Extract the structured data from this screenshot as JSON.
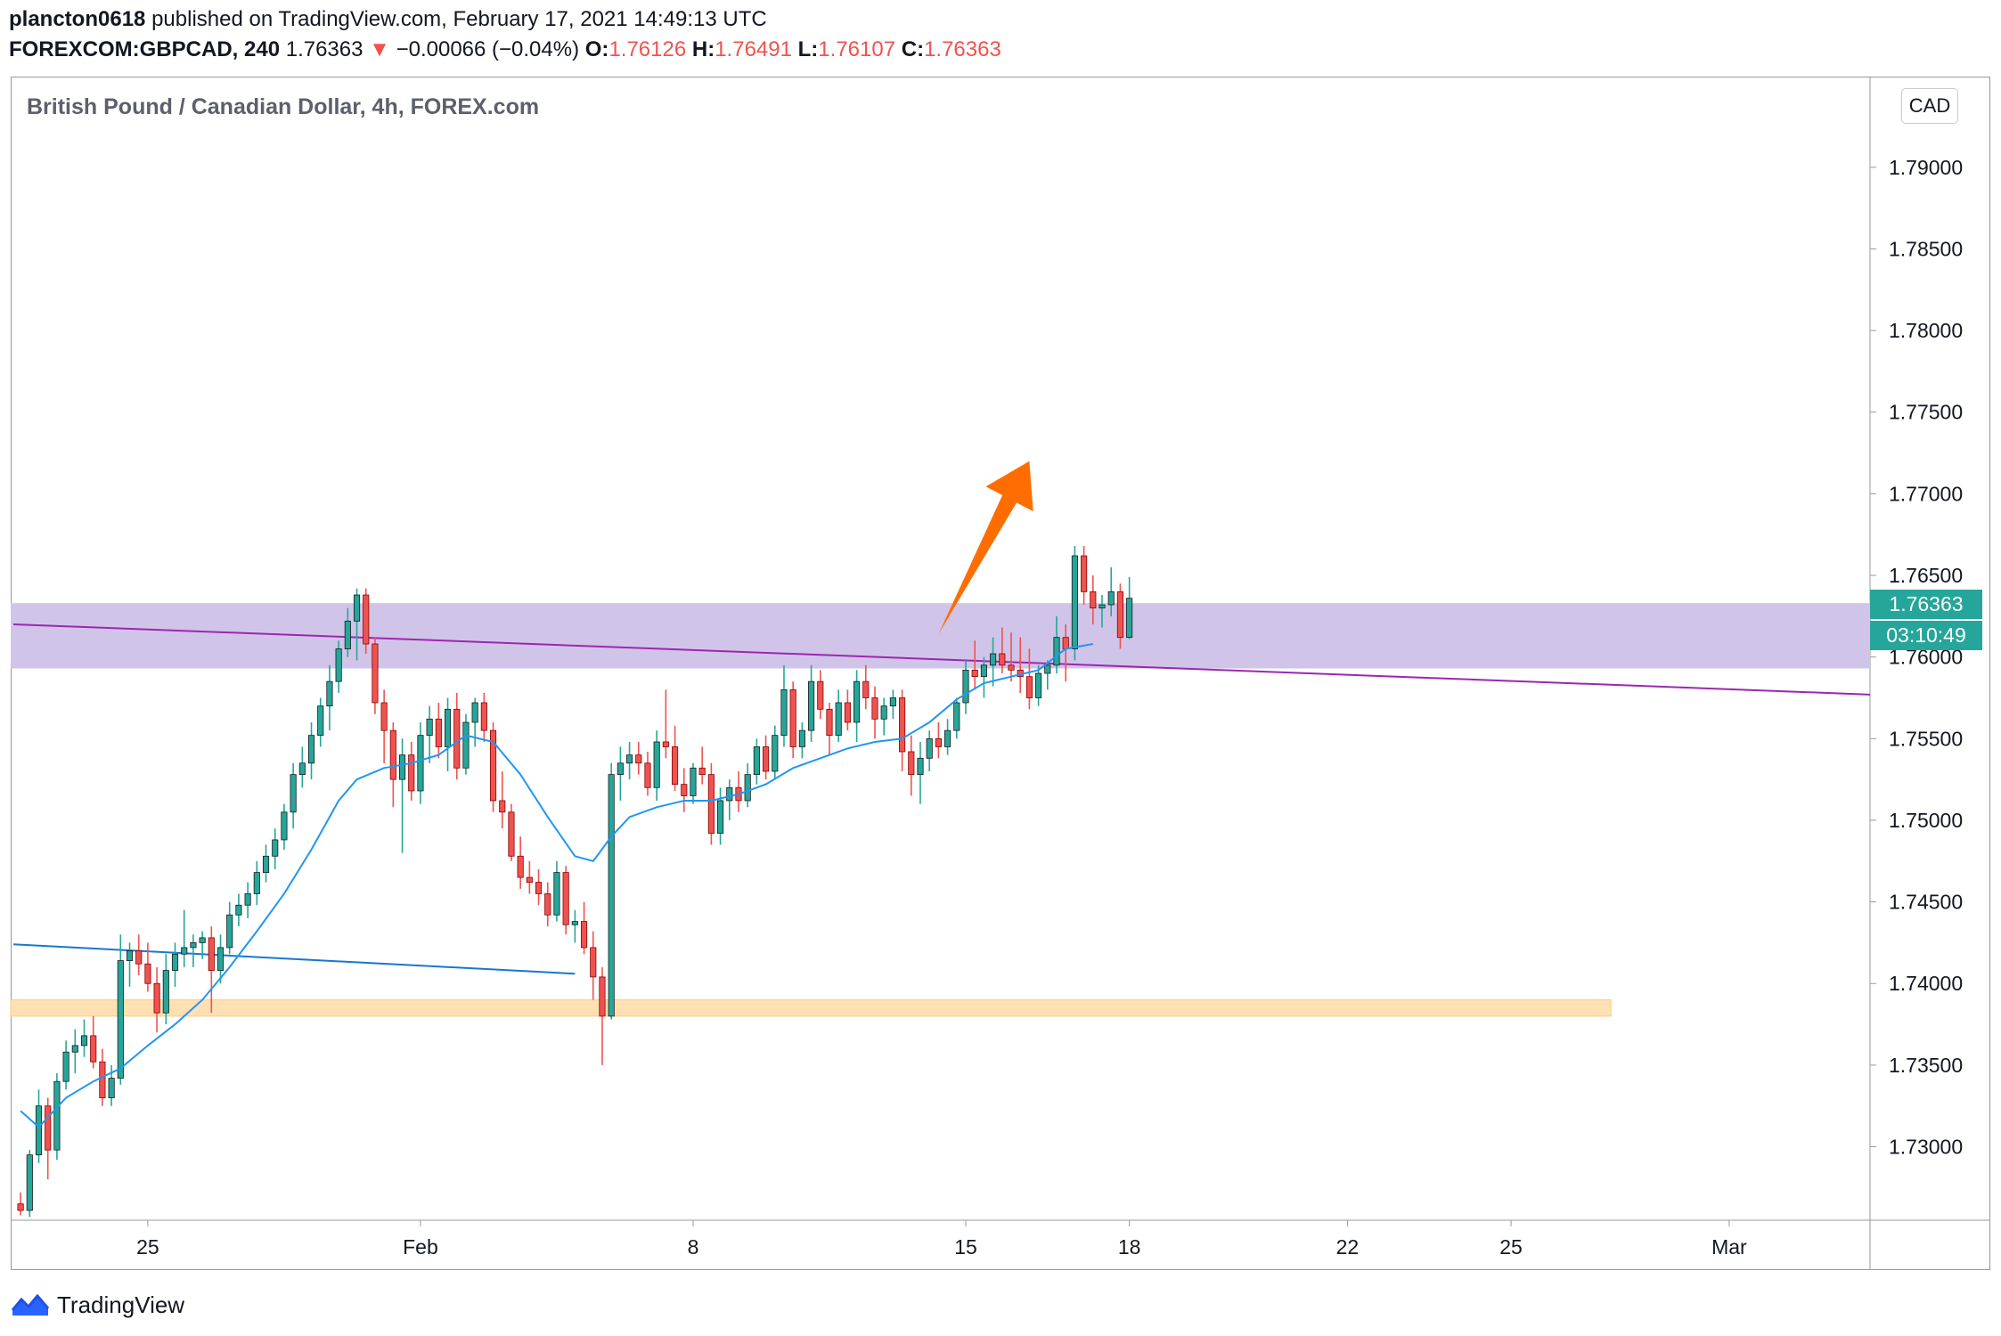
{
  "header": {
    "author": "plancton0618",
    "published": "published on TradingView.com, February 17, 2021 14:49:13 UTC",
    "symbol": "FOREXCOM:GBPCAD, 240",
    "last": "1.76363",
    "change": "−0.00066 (−0.04%)",
    "o_label": "O:",
    "o_value": "1.76126",
    "h_label": "H:",
    "h_value": "1.76491",
    "l_label": "L:",
    "l_value": "1.76107",
    "c_label": "C:",
    "c_value": "1.76363"
  },
  "chart_title": "British Pound / Canadian Dollar, 4h, FOREX.com",
  "currency_badge": "CAD",
  "price_tag": "1.76363",
  "timer_tag": "03:10:49",
  "brand": "TradingView",
  "colors": {
    "up": "#26a69a",
    "down": "#ef5350",
    "ema": "#2196f3",
    "zone": "#d1c4e9",
    "support": "#ffe0b2",
    "trend": "#9c27b0",
    "arrow": "#ff6d00"
  },
  "chart_data": {
    "type": "candlestick",
    "title": "British Pound / Canadian Dollar, 4h, FOREX.com",
    "y_ticks": [
      "1.79000",
      "1.78500",
      "1.78000",
      "1.77500",
      "1.77000",
      "1.76500",
      "1.76000",
      "1.75500",
      "1.75000",
      "1.74500",
      "1.74000",
      "1.73500",
      "1.73000"
    ],
    "x_ticks": [
      {
        "label": "25",
        "i": 14
      },
      {
        "label": "Feb",
        "i": 44
      },
      {
        "label": "8",
        "i": 74
      },
      {
        "label": "15",
        "i": 104
      },
      {
        "label": "18",
        "i": 122
      },
      {
        "label": "22",
        "i": 146
      },
      {
        "label": "25",
        "i": 164
      },
      {
        "label": "Mar",
        "i": 188
      }
    ],
    "ylim": [
      1.7255,
      1.7955
    ],
    "bar_count": 204,
    "ohlc": [
      [
        1.7265,
        1.7272,
        1.7258,
        1.7261
      ],
      [
        1.7261,
        1.7298,
        1.7257,
        1.7295
      ],
      [
        1.7295,
        1.7335,
        1.729,
        1.7325
      ],
      [
        1.7325,
        1.733,
        1.728,
        1.7298
      ],
      [
        1.7298,
        1.7345,
        1.7292,
        1.734
      ],
      [
        1.734,
        1.7365,
        1.7335,
        1.7358
      ],
      [
        1.7358,
        1.7372,
        1.7345,
        1.7362
      ],
      [
        1.7362,
        1.7378,
        1.7355,
        1.7368
      ],
      [
        1.7368,
        1.738,
        1.7348,
        1.7352
      ],
      [
        1.7352,
        1.736,
        1.7325,
        1.733
      ],
      [
        1.733,
        1.735,
        1.7325,
        1.7342
      ],
      [
        1.7342,
        1.743,
        1.7338,
        1.7414
      ],
      [
        1.7414,
        1.7425,
        1.7398,
        1.742
      ],
      [
        1.742,
        1.743,
        1.7405,
        1.7412
      ],
      [
        1.7412,
        1.7425,
        1.7395,
        1.74
      ],
      [
        1.74,
        1.741,
        1.737,
        1.7382
      ],
      [
        1.7382,
        1.7418,
        1.7375,
        1.7408
      ],
      [
        1.7408,
        1.7425,
        1.7398,
        1.7418
      ],
      [
        1.7418,
        1.7445,
        1.741,
        1.7422
      ],
      [
        1.7422,
        1.743,
        1.741,
        1.7425
      ],
      [
        1.7425,
        1.7432,
        1.7415,
        1.7428
      ],
      [
        1.7428,
        1.7435,
        1.7382,
        1.7408
      ],
      [
        1.7408,
        1.743,
        1.74,
        1.7422
      ],
      [
        1.7422,
        1.745,
        1.7418,
        1.7442
      ],
      [
        1.7442,
        1.7455,
        1.7435,
        1.7448
      ],
      [
        1.7448,
        1.7462,
        1.744,
        1.7455
      ],
      [
        1.7455,
        1.7475,
        1.7448,
        1.7468
      ],
      [
        1.7468,
        1.7485,
        1.7462,
        1.7478
      ],
      [
        1.7478,
        1.7495,
        1.747,
        1.7488
      ],
      [
        1.7488,
        1.751,
        1.7482,
        1.7505
      ],
      [
        1.7505,
        1.7535,
        1.7495,
        1.7528
      ],
      [
        1.7528,
        1.7545,
        1.752,
        1.7535
      ],
      [
        1.7535,
        1.756,
        1.7525,
        1.7552
      ],
      [
        1.7552,
        1.7575,
        1.7545,
        1.757
      ],
      [
        1.757,
        1.7595,
        1.7555,
        1.7585
      ],
      [
        1.7585,
        1.761,
        1.7578,
        1.7605
      ],
      [
        1.7605,
        1.763,
        1.76,
        1.7622
      ],
      [
        1.7622,
        1.7642,
        1.7598,
        1.7638
      ],
      [
        1.7638,
        1.7642,
        1.7602,
        1.7608
      ],
      [
        1.7608,
        1.7612,
        1.7565,
        1.7572
      ],
      [
        1.7572,
        1.758,
        1.7535,
        1.7555
      ],
      [
        1.7555,
        1.756,
        1.7508,
        1.7525
      ],
      [
        1.7525,
        1.755,
        1.748,
        1.754
      ],
      [
        1.754,
        1.7548,
        1.7512,
        1.7518
      ],
      [
        1.7518,
        1.756,
        1.751,
        1.7552
      ],
      [
        1.7552,
        1.757,
        1.7535,
        1.7562
      ],
      [
        1.7562,
        1.7572,
        1.7538,
        1.7545
      ],
      [
        1.7545,
        1.7575,
        1.753,
        1.7568
      ],
      [
        1.7568,
        1.7578,
        1.7525,
        1.7532
      ],
      [
        1.7532,
        1.7565,
        1.7528,
        1.756
      ],
      [
        1.756,
        1.7575,
        1.7545,
        1.7572
      ],
      [
        1.7572,
        1.7578,
        1.7548,
        1.7555
      ],
      [
        1.7555,
        1.756,
        1.7505,
        1.7512
      ],
      [
        1.7512,
        1.753,
        1.7495,
        1.7505
      ],
      [
        1.7505,
        1.751,
        1.7475,
        1.7478
      ],
      [
        1.7478,
        1.749,
        1.7458,
        1.7465
      ],
      [
        1.7465,
        1.7475,
        1.7455,
        1.7462
      ],
      [
        1.7462,
        1.747,
        1.7448,
        1.7455
      ],
      [
        1.7455,
        1.7462,
        1.7435,
        1.7442
      ],
      [
        1.7442,
        1.7475,
        1.7438,
        1.7468
      ],
      [
        1.7468,
        1.7472,
        1.743,
        1.7436
      ],
      [
        1.7436,
        1.7445,
        1.7425,
        1.7438
      ],
      [
        1.7438,
        1.745,
        1.7418,
        1.7422
      ],
      [
        1.7422,
        1.7432,
        1.739,
        1.7404
      ],
      [
        1.7404,
        1.741,
        1.735,
        1.738
      ],
      [
        1.738,
        1.7535,
        1.7378,
        1.7528
      ],
      [
        1.7528,
        1.7545,
        1.7512,
        1.7535
      ],
      [
        1.7535,
        1.7548,
        1.7525,
        1.754
      ],
      [
        1.754,
        1.7548,
        1.7528,
        1.7535
      ],
      [
        1.7535,
        1.7542,
        1.7515,
        1.752
      ],
      [
        1.752,
        1.7555,
        1.7512,
        1.7548
      ],
      [
        1.7548,
        1.758,
        1.7538,
        1.7545
      ],
      [
        1.7545,
        1.7558,
        1.7518,
        1.7522
      ],
      [
        1.7522,
        1.7532,
        1.7505,
        1.7515
      ],
      [
        1.7515,
        1.7535,
        1.751,
        1.7532
      ],
      [
        1.7532,
        1.7545,
        1.7522,
        1.7528
      ],
      [
        1.7528,
        1.7535,
        1.7485,
        1.7492
      ],
      [
        1.7492,
        1.752,
        1.7485,
        1.7512
      ],
      [
        1.7512,
        1.7525,
        1.75,
        1.752
      ],
      [
        1.752,
        1.753,
        1.7505,
        1.7512
      ],
      [
        1.7512,
        1.7535,
        1.7508,
        1.7528
      ],
      [
        1.7528,
        1.755,
        1.7522,
        1.7545
      ],
      [
        1.7545,
        1.7552,
        1.7525,
        1.753
      ],
      [
        1.753,
        1.7558,
        1.7525,
        1.7552
      ],
      [
        1.7552,
        1.7595,
        1.7545,
        1.758
      ],
      [
        1.758,
        1.7585,
        1.7538,
        1.7545
      ],
      [
        1.7545,
        1.756,
        1.7538,
        1.7555
      ],
      [
        1.7555,
        1.7595,
        1.7548,
        1.7585
      ],
      [
        1.7585,
        1.7592,
        1.7562,
        1.7568
      ],
      [
        1.7568,
        1.7572,
        1.754,
        1.7552
      ],
      [
        1.7552,
        1.758,
        1.7548,
        1.7572
      ],
      [
        1.7572,
        1.758,
        1.7555,
        1.756
      ],
      [
        1.756,
        1.7592,
        1.7548,
        1.7585
      ],
      [
        1.7585,
        1.7595,
        1.7568,
        1.7575
      ],
      [
        1.7575,
        1.7582,
        1.755,
        1.7562
      ],
      [
        1.7562,
        1.7575,
        1.7552,
        1.757
      ],
      [
        1.757,
        1.758,
        1.7562,
        1.7575
      ],
      [
        1.7575,
        1.758,
        1.753,
        1.7542
      ],
      [
        1.7542,
        1.7552,
        1.7515,
        1.7528
      ],
      [
        1.7528,
        1.7548,
        1.751,
        1.7538
      ],
      [
        1.7538,
        1.7555,
        1.753,
        1.755
      ],
      [
        1.755,
        1.756,
        1.7538,
        1.7545
      ],
      [
        1.7545,
        1.7562,
        1.754,
        1.7555
      ],
      [
        1.7555,
        1.7575,
        1.755,
        1.7572
      ],
      [
        1.7572,
        1.7598,
        1.7565,
        1.7592
      ],
      [
        1.7592,
        1.761,
        1.758,
        1.7588
      ],
      [
        1.7588,
        1.76,
        1.7575,
        1.7595
      ],
      [
        1.7595,
        1.7612,
        1.7582,
        1.7602
      ],
      [
        1.7602,
        1.7618,
        1.759,
        1.7595
      ],
      [
        1.7595,
        1.7615,
        1.7585,
        1.7592
      ],
      [
        1.7592,
        1.7612,
        1.7578,
        1.7588
      ],
      [
        1.7588,
        1.7605,
        1.7568,
        1.7575
      ],
      [
        1.7575,
        1.7595,
        1.757,
        1.759
      ],
      [
        1.759,
        1.7598,
        1.758,
        1.7595
      ],
      [
        1.7595,
        1.7625,
        1.759,
        1.7612
      ],
      [
        1.7612,
        1.762,
        1.7585,
        1.7605
      ],
      [
        1.7605,
        1.7668,
        1.7598,
        1.7662
      ],
      [
        1.7662,
        1.7668,
        1.7632,
        1.764
      ],
      [
        1.764,
        1.765,
        1.762,
        1.763
      ],
      [
        1.763,
        1.7638,
        1.7618,
        1.7632
      ],
      [
        1.7632,
        1.7655,
        1.7625,
        1.764
      ],
      [
        1.764,
        1.7645,
        1.7605,
        1.7612
      ],
      [
        1.7612,
        1.7649,
        1.7611,
        1.7636
      ]
    ],
    "ema": [
      [
        0,
        1.7322
      ],
      [
        2,
        1.7312
      ],
      [
        5,
        1.733
      ],
      [
        8,
        1.734
      ],
      [
        11,
        1.7348
      ],
      [
        14,
        1.7362
      ],
      [
        17,
        1.7375
      ],
      [
        20,
        1.739
      ],
      [
        23,
        1.741
      ],
      [
        26,
        1.7432
      ],
      [
        29,
        1.7455
      ],
      [
        32,
        1.7482
      ],
      [
        35,
        1.7512
      ],
      [
        37,
        1.7525
      ],
      [
        40,
        1.7532
      ],
      [
        43,
        1.7535
      ],
      [
        46,
        1.754
      ],
      [
        49,
        1.7552
      ],
      [
        52,
        1.7548
      ],
      [
        55,
        1.7528
      ],
      [
        58,
        1.7502
      ],
      [
        61,
        1.7478
      ],
      [
        63,
        1.7475
      ],
      [
        65,
        1.749
      ],
      [
        67,
        1.7502
      ],
      [
        70,
        1.7508
      ],
      [
        73,
        1.7512
      ],
      [
        76,
        1.7512
      ],
      [
        79,
        1.7516
      ],
      [
        82,
        1.7522
      ],
      [
        85,
        1.7532
      ],
      [
        88,
        1.7538
      ],
      [
        91,
        1.7544
      ],
      [
        94,
        1.7548
      ],
      [
        97,
        1.755
      ],
      [
        100,
        1.756
      ],
      [
        103,
        1.7574
      ],
      [
        106,
        1.7584
      ],
      [
        109,
        1.7588
      ],
      [
        112,
        1.7592
      ],
      [
        115,
        1.7605
      ],
      [
        118,
        1.7608
      ]
    ],
    "purple_zone": [
      1.7593,
      1.7633
    ],
    "support_zone": [
      1.738,
      1.739
    ],
    "trend_purple": [
      [
        0,
        1.762
      ],
      [
        204,
        1.7577
      ]
    ],
    "trend_blue": [
      [
        0,
        1.7424
      ],
      [
        61,
        1.7406
      ]
    ],
    "arrow": {
      "from": [
        101,
        1.7614
      ],
      "to": [
        111,
        1.772
      ]
    }
  }
}
